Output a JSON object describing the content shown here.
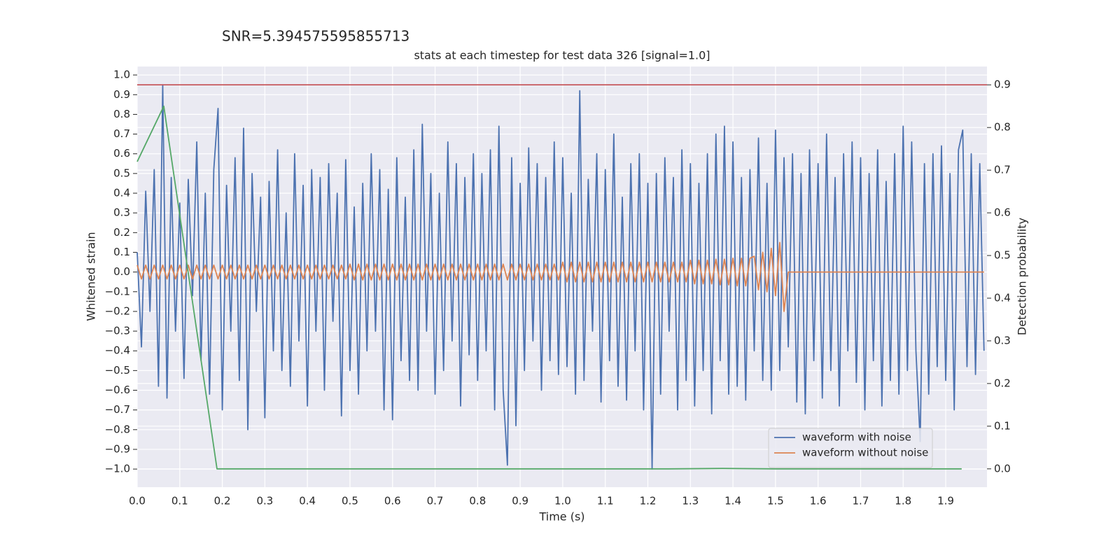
{
  "chart_data": {
    "type": "line",
    "suptitle": "SNR=5.394575595855713",
    "title": "stats at each timestep for test data 326 [signal=1.0]",
    "xlabel": "Time (s)",
    "ylabel": "Whitened strain",
    "y2label": "Detection probability",
    "xlim": [
      0,
      1.997
    ],
    "ylim": [
      -1.092,
      1.043
    ],
    "y2lim": [
      -0.043,
      0.943
    ],
    "grid": true,
    "legend": "lower right",
    "xticks": [
      {
        "value": 0,
        "label": "0.0"
      },
      {
        "value": 0.1,
        "label": "0.1"
      },
      {
        "value": 0.2,
        "label": "0.2"
      },
      {
        "value": 0.3,
        "label": "0.3"
      },
      {
        "value": 0.4,
        "label": "0.4"
      },
      {
        "value": 0.5,
        "label": "0.5"
      },
      {
        "value": 0.6,
        "label": "0.6"
      },
      {
        "value": 0.7,
        "label": "0.7"
      },
      {
        "value": 0.8,
        "label": "0.8"
      },
      {
        "value": 0.9,
        "label": "0.9"
      },
      {
        "value": 1,
        "label": "1.0"
      },
      {
        "value": 1.1,
        "label": "1.1"
      },
      {
        "value": 1.2,
        "label": "1.2"
      },
      {
        "value": 1.3,
        "label": "1.3"
      },
      {
        "value": 1.4,
        "label": "1.4"
      },
      {
        "value": 1.5,
        "label": "1.5"
      },
      {
        "value": 1.6,
        "label": "1.6"
      },
      {
        "value": 1.7,
        "label": "1.7"
      },
      {
        "value": 1.8,
        "label": "1.8"
      },
      {
        "value": 1.9,
        "label": "1.9"
      }
    ],
    "yticks": [
      {
        "value": -1,
        "label": "−1.0"
      },
      {
        "value": -0.9,
        "label": "−0.9"
      },
      {
        "value": -0.8,
        "label": "−0.8"
      },
      {
        "value": -0.7,
        "label": "−0.7"
      },
      {
        "value": -0.6,
        "label": "−0.6"
      },
      {
        "value": -0.5,
        "label": "−0.5"
      },
      {
        "value": -0.4,
        "label": "−0.4"
      },
      {
        "value": -0.3,
        "label": "−0.3"
      },
      {
        "value": -0.2,
        "label": "−0.2"
      },
      {
        "value": -0.1,
        "label": "−0.1"
      },
      {
        "value": 0,
        "label": "0.0"
      },
      {
        "value": 0.1,
        "label": "0.1"
      },
      {
        "value": 0.2,
        "label": "0.2"
      },
      {
        "value": 0.3,
        "label": "0.3"
      },
      {
        "value": 0.4,
        "label": "0.4"
      },
      {
        "value": 0.5,
        "label": "0.5"
      },
      {
        "value": 0.6,
        "label": "0.6"
      },
      {
        "value": 0.7,
        "label": "0.7"
      },
      {
        "value": 0.8,
        "label": "0.8"
      },
      {
        "value": 0.9,
        "label": "0.9"
      },
      {
        "value": 1,
        "label": "1.0"
      }
    ],
    "y2ticks": [
      {
        "value": 0,
        "label": "0.0"
      },
      {
        "value": 0.1,
        "label": "0.1"
      },
      {
        "value": 0.2,
        "label": "0.2"
      },
      {
        "value": 0.3,
        "label": "0.3"
      },
      {
        "value": 0.4,
        "label": "0.4"
      },
      {
        "value": 0.5,
        "label": "0.5"
      },
      {
        "value": 0.6,
        "label": "0.6"
      },
      {
        "value": 0.7,
        "label": "0.7"
      },
      {
        "value": 0.8,
        "label": "0.8"
      },
      {
        "value": 0.9,
        "label": "0.9"
      }
    ],
    "hline": {
      "value": 0.9,
      "axis": "y2",
      "color": "#c44e52"
    },
    "x": [
      0,
      0.01,
      0.02,
      0.03,
      0.04,
      0.05,
      0.06,
      0.07,
      0.08,
      0.09,
      0.1,
      0.11,
      0.12,
      0.13,
      0.14,
      0.15,
      0.16,
      0.17,
      0.18,
      0.19,
      0.2,
      0.21,
      0.22,
      0.23,
      0.24,
      0.25,
      0.26,
      0.27,
      0.28,
      0.29,
      0.3,
      0.31,
      0.32,
      0.33,
      0.34,
      0.35,
      0.36,
      0.37,
      0.38,
      0.39,
      0.4,
      0.41,
      0.42,
      0.43,
      0.44,
      0.45,
      0.46,
      0.47,
      0.48,
      0.49,
      0.5,
      0.51,
      0.52,
      0.53,
      0.54,
      0.55,
      0.56,
      0.57,
      0.58,
      0.59,
      0.6,
      0.61,
      0.62,
      0.63,
      0.64,
      0.65,
      0.66,
      0.67,
      0.68,
      0.69,
      0.7,
      0.71,
      0.72,
      0.73,
      0.74,
      0.75,
      0.76,
      0.77,
      0.78,
      0.79,
      0.8,
      0.81,
      0.82,
      0.83,
      0.84,
      0.85,
      0.86,
      0.87,
      0.88,
      0.89,
      0.9,
      0.91,
      0.92,
      0.93,
      0.94,
      0.95,
      0.96,
      0.97,
      0.98,
      0.99,
      1,
      1.01,
      1.02,
      1.03,
      1.04,
      1.05,
      1.06,
      1.07,
      1.08,
      1.09,
      1.1,
      1.11,
      1.12,
      1.13,
      1.14,
      1.15,
      1.16,
      1.17,
      1.18,
      1.19,
      1.2,
      1.21,
      1.22,
      1.23,
      1.24,
      1.25,
      1.26,
      1.27,
      1.28,
      1.29,
      1.3,
      1.31,
      1.32,
      1.33,
      1.34,
      1.35,
      1.36,
      1.37,
      1.38,
      1.39,
      1.4,
      1.41,
      1.42,
      1.43,
      1.44,
      1.45,
      1.46,
      1.47,
      1.48,
      1.49,
      1.5,
      1.51,
      1.52,
      1.53,
      1.54,
      1.55,
      1.56,
      1.57,
      1.58,
      1.59,
      1.6,
      1.61,
      1.62,
      1.63,
      1.64,
      1.65,
      1.66,
      1.67,
      1.68,
      1.69,
      1.7,
      1.71,
      1.72,
      1.73,
      1.74,
      1.75,
      1.76,
      1.77,
      1.78,
      1.79,
      1.8,
      1.81,
      1.82,
      1.83,
      1.84,
      1.85,
      1.86,
      1.87,
      1.88,
      1.89,
      1.9,
      1.91,
      1.92,
      1.93,
      1.94,
      1.95,
      1.96,
      1.97,
      1.98,
      1.99
    ],
    "series": [
      {
        "name": "waveform with noise",
        "color": "#4c72b0",
        "values": [
          0.1,
          -0.38,
          0.41,
          -0.2,
          0.52,
          -0.58,
          0.95,
          -0.64,
          0.48,
          -0.3,
          0.35,
          -0.54,
          0.47,
          -0.12,
          0.66,
          -0.45,
          0.4,
          -0.62,
          0.52,
          0.83,
          -0.7,
          0.44,
          -0.3,
          0.58,
          -0.55,
          0.73,
          -0.8,
          0.5,
          -0.2,
          0.38,
          -0.74,
          0.46,
          -0.4,
          0.62,
          -0.5,
          0.3,
          -0.58,
          0.6,
          -0.35,
          0.44,
          -0.68,
          0.52,
          -0.3,
          0.48,
          -0.6,
          0.55,
          -0.25,
          0.4,
          -0.73,
          0.57,
          -0.5,
          0.33,
          -0.62,
          0.45,
          -0.4,
          0.6,
          -0.3,
          0.52,
          -0.7,
          0.42,
          -0.75,
          0.58,
          -0.45,
          0.38,
          -0.55,
          0.62,
          -0.6,
          0.75,
          -0.3,
          0.5,
          -0.62,
          0.4,
          -0.5,
          0.66,
          -0.35,
          0.55,
          -0.68,
          0.48,
          -0.42,
          0.6,
          -0.55,
          0.5,
          -0.4,
          0.62,
          -0.7,
          0.74,
          -0.6,
          -0.98,
          0.58,
          -0.78,
          0.45,
          -0.5,
          0.63,
          -0.35,
          0.55,
          -0.6,
          0.48,
          -0.45,
          0.66,
          -0.52,
          0.58,
          -0.48,
          0.4,
          -0.62,
          0.92,
          -0.55,
          0.47,
          -0.3,
          0.6,
          -0.66,
          0.52,
          -0.45,
          0.7,
          -0.58,
          0.38,
          -0.65,
          0.55,
          -0.4,
          0.6,
          -0.7,
          0.45,
          -1.0,
          0.5,
          -0.62,
          0.58,
          -0.3,
          0.48,
          -0.7,
          0.62,
          -0.55,
          0.55,
          -0.68,
          0.45,
          -0.5,
          0.6,
          -0.72,
          0.7,
          -0.45,
          0.74,
          -0.62,
          0.66,
          -0.58,
          0.48,
          -0.65,
          0.52,
          -0.4,
          0.68,
          -0.55,
          0.45,
          -0.6,
          0.72,
          -0.5,
          0.58,
          -0.38,
          0.6,
          -0.66,
          0.5,
          -0.72,
          0.62,
          -0.45,
          0.55,
          -0.64,
          0.7,
          -0.5,
          0.48,
          -0.68,
          0.6,
          -0.4,
          0.66,
          -0.56,
          0.58,
          -0.7,
          0.5,
          -0.45,
          0.62,
          -0.68,
          0.46,
          -0.55,
          0.6,
          -0.62,
          0.74,
          -0.5,
          0.66,
          -0.4,
          -0.86,
          0.55,
          -0.62,
          0.6,
          -0.48,
          0.64,
          -0.55,
          0.5,
          -0.7,
          0.62,
          0.72,
          -0.48,
          0.6,
          -0.52,
          0.55,
          -0.4
        ]
      },
      {
        "name": "waveform without noise",
        "color": "#dd8452",
        "values": [
          0.035,
          -0.035,
          0.035,
          -0.035,
          0.035,
          -0.035,
          0.035,
          -0.035,
          0.035,
          -0.035,
          0.035,
          -0.035,
          0.035,
          -0.035,
          0.035,
          -0.035,
          0.035,
          -0.035,
          0.035,
          -0.035,
          0.035,
          -0.035,
          0.035,
          -0.035,
          0.035,
          -0.035,
          0.035,
          -0.035,
          0.035,
          -0.035,
          0.035,
          -0.035,
          0.035,
          -0.035,
          0.035,
          -0.035,
          0.035,
          -0.035,
          0.035,
          -0.035,
          0.035,
          -0.035,
          0.035,
          -0.035,
          0.035,
          -0.035,
          0.035,
          -0.035,
          0.035,
          -0.035,
          0.04,
          -0.04,
          0.04,
          -0.04,
          0.04,
          -0.04,
          0.04,
          -0.04,
          0.04,
          -0.04,
          0.04,
          -0.04,
          0.04,
          -0.04,
          0.04,
          -0.04,
          0.04,
          -0.04,
          0.04,
          -0.04,
          0.04,
          -0.04,
          0.04,
          -0.04,
          0.04,
          -0.04,
          0.04,
          -0.04,
          0.04,
          -0.04,
          0.04,
          -0.04,
          0.04,
          -0.04,
          0.04,
          -0.04,
          0.04,
          -0.04,
          0.04,
          -0.04,
          0.04,
          -0.04,
          0.04,
          -0.04,
          0.04,
          -0.04,
          0.04,
          -0.04,
          0.04,
          -0.04,
          0.05,
          -0.05,
          0.05,
          -0.05,
          0.05,
          -0.05,
          0.05,
          -0.05,
          0.05,
          -0.05,
          0.05,
          -0.05,
          0.05,
          -0.05,
          0.05,
          -0.05,
          0.05,
          -0.05,
          0.05,
          -0.05,
          0.05,
          -0.05,
          0.05,
          -0.05,
          0.05,
          -0.05,
          0.05,
          -0.05,
          0.05,
          -0.05,
          0.06,
          -0.06,
          0.06,
          -0.06,
          0.06,
          -0.06,
          0.065,
          -0.065,
          0.065,
          -0.065,
          0.07,
          -0.07,
          0.07,
          -0.07,
          0.07,
          0.08,
          -0.09,
          0.1,
          -0.1,
          0.12,
          -0.12,
          0.15,
          -0.2,
          0,
          0,
          0,
          0,
          0,
          0,
          0,
          0,
          0,
          0,
          0,
          0,
          0,
          0,
          0,
          0,
          0,
          0,
          0,
          0,
          0,
          0,
          0,
          0,
          0,
          0,
          0,
          0,
          0,
          0,
          0,
          0,
          0,
          0,
          0,
          0,
          0,
          0,
          0,
          0,
          0,
          0,
          0,
          0,
          0,
          0,
          0
        ]
      },
      {
        "color": "#55a868",
        "axis": "y2",
        "x": [
          0,
          0.0625,
          0.1875,
          0.25,
          0.5,
          0.75,
          1,
          1.25,
          1.375,
          1.5,
          1.75,
          1.9375
        ],
        "values": [
          0.72,
          0.85,
          0,
          0,
          0,
          0,
          0,
          0,
          0.001,
          0,
          0,
          0
        ]
      }
    ]
  }
}
